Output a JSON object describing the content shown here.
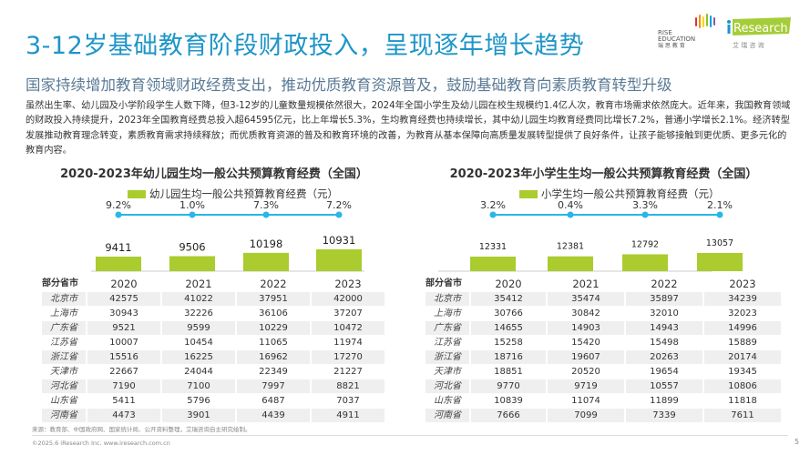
{
  "title": "3-12岁基础教育阶段财政投入，呈现逐年增长趋势",
  "subtitle": "国家持续增加教育领域财政经费支出，推动优质教育资源普及，鼓励基础教育向素质教育转型升级",
  "body": "虽然出生率、幼儿园及小学阶段学生人数下降，但3-12岁的儿童数量规模依然很大，2024年全国小学生及幼儿园在校生规模约1.4亿人次，教育市场需求依然庞大。近年来，我国教育领域的财政投入持续提升，2023年全国教育经费总投入超64595亿元，比上年增长5.3%，生均教育经费也持续增长，其中幼儿园生均教育经费同比增长7.2%，普通小学增长2.1%。经济转型发展推动教育理念转变，素质教育需求持续释放；而优质教育资源的普及和教育环境的改善，为教育从基本保障向高质量发展转型提供了良好条件，让孩子能够接触到更优质、更多元化的教育内容。",
  "logos": {
    "rise": "RISE EDUCATION 瑞思教育",
    "iresearch": "iResearch",
    "iresearch_cn": "艾 瑞 咨 询"
  },
  "colors": {
    "title": "#1e95c8",
    "bar": "#aacc2e",
    "line": "#29b6e8"
  },
  "chart_data": [
    {
      "type": "bar",
      "title": "2020-2023年幼儿园生均一般公共预算教育经费（全国）",
      "legend": "幼儿园生均一般公共预算教育经费（元）",
      "categories": [
        "2020",
        "2021",
        "2022",
        "2023"
      ],
      "values": [
        9411,
        9506,
        10198,
        10931
      ],
      "growth": [
        "9.2%",
        "1.0%",
        "7.3%",
        "7.2%"
      ]
    },
    {
      "type": "bar",
      "title": "2020-2023年小学生生均一般公共预算教育经费（全国）",
      "legend": "小学生均一般公共预算教育经费（元）",
      "categories": [
        "2020",
        "2021",
        "2022",
        "2023"
      ],
      "values": [
        12331,
        12381,
        12792,
        13057
      ],
      "growth": [
        "3.2%",
        "0.4%",
        "3.3%",
        "2.1%"
      ]
    }
  ],
  "tables": [
    {
      "header": [
        "部分省市",
        "2020",
        "2021",
        "2022",
        "2023"
      ],
      "rows": [
        [
          "北京市",
          "42575",
          "41022",
          "37951",
          "42000"
        ],
        [
          "上海市",
          "30943",
          "32226",
          "36106",
          "37207"
        ],
        [
          "广东省",
          "9521",
          "9599",
          "10229",
          "10472"
        ],
        [
          "江苏省",
          "10007",
          "10454",
          "11065",
          "11974"
        ],
        [
          "浙江省",
          "15516",
          "16225",
          "16962",
          "17270"
        ],
        [
          "天津市",
          "22667",
          "24044",
          "22349",
          "21227"
        ],
        [
          "河北省",
          "7190",
          "7100",
          "7997",
          "8821"
        ],
        [
          "山东省",
          "5411",
          "5796",
          "6487",
          "7037"
        ],
        [
          "河南省",
          "4473",
          "3901",
          "4439",
          "4911"
        ]
      ]
    },
    {
      "header": [
        "部分省市",
        "2020",
        "2021",
        "2022",
        "2023"
      ],
      "rows": [
        [
          "北京市",
          "35412",
          "35474",
          "35897",
          "34239"
        ],
        [
          "上海市",
          "30766",
          "30842",
          "32010",
          "32023"
        ],
        [
          "广东省",
          "14655",
          "14903",
          "14943",
          "14996"
        ],
        [
          "江苏省",
          "15258",
          "15420",
          "15498",
          "15889"
        ],
        [
          "浙江省",
          "18716",
          "19607",
          "20263",
          "20174"
        ],
        [
          "天津市",
          "18851",
          "20520",
          "19654",
          "19345"
        ],
        [
          "河北省",
          "9770",
          "9719",
          "10557",
          "10806"
        ],
        [
          "山东省",
          "10839",
          "11074",
          "11899",
          "11818"
        ],
        [
          "河南省",
          "7666",
          "7099",
          "7339",
          "7611"
        ]
      ]
    }
  ],
  "source": "来源：教育部、中国政府网、国家统计局、公开资料整理，艾瑞咨询自主研究绘制。",
  "footer": "©2025.6 iResearch Inc. www.iresearch.com.cn",
  "page": "5"
}
